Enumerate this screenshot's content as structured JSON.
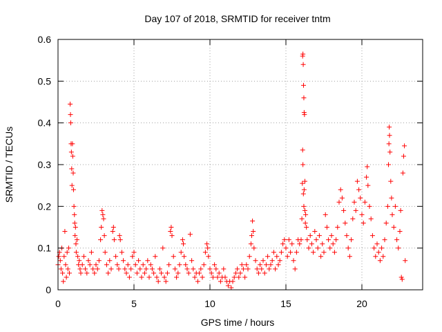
{
  "chart_data": {
    "type": "scatter",
    "title": "Day 107 of 2018, SRMTID for receiver tntm",
    "xlabel": "GPS time / hours",
    "ylabel": "SRMTID / TECUs",
    "xlim": [
      0,
      24
    ],
    "ylim": [
      0,
      0.6
    ],
    "xticks": [
      0,
      5,
      10,
      15,
      20
    ],
    "xtick_labels": [
      "0",
      "5",
      "10",
      "15",
      "20"
    ],
    "yticks": [
      0,
      0.1,
      0.2,
      0.3,
      0.4,
      0.5,
      0.6
    ],
    "ytick_labels": [
      "0",
      "0.1",
      "0.2",
      "0.3",
      "0.4",
      "0.5",
      "0.6"
    ],
    "grid": true,
    "marker": "+",
    "color": "#ff0000",
    "series": [
      {
        "name": "SRMTID",
        "points": [
          [
            0.0,
            0.06
          ],
          [
            0.05,
            0.08
          ],
          [
            0.1,
            0.09
          ],
          [
            0.15,
            0.07
          ],
          [
            0.2,
            0.05
          ],
          [
            0.25,
            0.1
          ],
          [
            0.3,
            0.04
          ],
          [
            0.35,
            0.02
          ],
          [
            0.4,
            0.08
          ],
          [
            0.45,
            0.14
          ],
          [
            0.5,
            0.06
          ],
          [
            0.55,
            0.03
          ],
          [
            0.6,
            0.09
          ],
          [
            0.65,
            0.05
          ],
          [
            0.7,
            0.1
          ],
          [
            0.75,
            0.04
          ],
          [
            0.8,
            0.445
          ],
          [
            0.82,
            0.42
          ],
          [
            0.84,
            0.4
          ],
          [
            0.86,
            0.35
          ],
          [
            0.88,
            0.33
          ],
          [
            0.9,
            0.29
          ],
          [
            0.92,
            0.25
          ],
          [
            0.95,
            0.35
          ],
          [
            0.97,
            0.32
          ],
          [
            1.0,
            0.28
          ],
          [
            1.02,
            0.24
          ],
          [
            1.05,
            0.2
          ],
          [
            1.08,
            0.18
          ],
          [
            1.1,
            0.16
          ],
          [
            1.12,
            0.13
          ],
          [
            1.15,
            0.15
          ],
          [
            1.18,
            0.11
          ],
          [
            1.2,
            0.09
          ],
          [
            1.25,
            0.12
          ],
          [
            1.3,
            0.08
          ],
          [
            1.35,
            0.06
          ],
          [
            1.4,
            0.07
          ],
          [
            1.45,
            0.05
          ],
          [
            1.5,
            0.04
          ],
          [
            1.6,
            0.06
          ],
          [
            1.7,
            0.08
          ],
          [
            1.8,
            0.05
          ],
          [
            1.9,
            0.04
          ],
          [
            2.0,
            0.07
          ],
          [
            2.1,
            0.06
          ],
          [
            2.2,
            0.09
          ],
          [
            2.3,
            0.05
          ],
          [
            2.4,
            0.04
          ],
          [
            2.5,
            0.06
          ],
          [
            2.6,
            0.05
          ],
          [
            2.7,
            0.07
          ],
          [
            2.8,
            0.12
          ],
          [
            2.85,
            0.15
          ],
          [
            2.9,
            0.19
          ],
          [
            2.95,
            0.18
          ],
          [
            3.0,
            0.17
          ],
          [
            3.05,
            0.13
          ],
          [
            3.1,
            0.09
          ],
          [
            3.2,
            0.06
          ],
          [
            3.3,
            0.04
          ],
          [
            3.4,
            0.07
          ],
          [
            3.5,
            0.05
          ],
          [
            3.6,
            0.14
          ],
          [
            3.65,
            0.15
          ],
          [
            3.7,
            0.12
          ],
          [
            3.8,
            0.08
          ],
          [
            3.9,
            0.06
          ],
          [
            4.0,
            0.05
          ],
          [
            4.05,
            0.13
          ],
          [
            4.1,
            0.12
          ],
          [
            4.2,
            0.09
          ],
          [
            4.3,
            0.07
          ],
          [
            4.4,
            0.05
          ],
          [
            4.5,
            0.04
          ],
          [
            4.6,
            0.06
          ],
          [
            4.7,
            0.03
          ],
          [
            4.8,
            0.05
          ],
          [
            4.9,
            0.08
          ],
          [
            5.0,
            0.09
          ],
          [
            5.1,
            0.06
          ],
          [
            5.2,
            0.04
          ],
          [
            5.3,
            0.07
          ],
          [
            5.4,
            0.05
          ],
          [
            5.5,
            0.03
          ],
          [
            5.6,
            0.06
          ],
          [
            5.7,
            0.04
          ],
          [
            5.8,
            0.05
          ],
          [
            5.9,
            0.07
          ],
          [
            6.0,
            0.03
          ],
          [
            6.1,
            0.06
          ],
          [
            6.2,
            0.05
          ],
          [
            6.3,
            0.04
          ],
          [
            6.4,
            0.08
          ],
          [
            6.5,
            0.03
          ],
          [
            6.6,
            0.02
          ],
          [
            6.7,
            0.05
          ],
          [
            6.8,
            0.04
          ],
          [
            6.9,
            0.1
          ],
          [
            7.0,
            0.03
          ],
          [
            7.1,
            0.02
          ],
          [
            7.2,
            0.04
          ],
          [
            7.3,
            0.06
          ],
          [
            7.4,
            0.14
          ],
          [
            7.45,
            0.15
          ],
          [
            7.5,
            0.13
          ],
          [
            7.6,
            0.08
          ],
          [
            7.7,
            0.05
          ],
          [
            7.8,
            0.03
          ],
          [
            7.9,
            0.04
          ],
          [
            8.0,
            0.06
          ],
          [
            8.1,
            0.09
          ],
          [
            8.2,
            0.12
          ],
          [
            8.25,
            0.11
          ],
          [
            8.3,
            0.08
          ],
          [
            8.4,
            0.06
          ],
          [
            8.5,
            0.05
          ],
          [
            8.6,
            0.04
          ],
          [
            8.7,
            0.133
          ],
          [
            8.8,
            0.07
          ],
          [
            8.9,
            0.05
          ],
          [
            9.0,
            0.03
          ],
          [
            9.1,
            0.04
          ],
          [
            9.2,
            0.02
          ],
          [
            9.3,
            0.04
          ],
          [
            9.4,
            0.05
          ],
          [
            9.5,
            0.03
          ],
          [
            9.6,
            0.06
          ],
          [
            9.7,
            0.09
          ],
          [
            9.8,
            0.11
          ],
          [
            9.85,
            0.1
          ],
          [
            9.9,
            0.08
          ],
          [
            10.0,
            0.05
          ],
          [
            10.1,
            0.04
          ],
          [
            10.2,
            0.03
          ],
          [
            10.3,
            0.06
          ],
          [
            10.4,
            0.05
          ],
          [
            10.5,
            0.03
          ],
          [
            10.6,
            0.04
          ],
          [
            10.7,
            0.02
          ],
          [
            10.8,
            0.03
          ],
          [
            10.9,
            0.05
          ],
          [
            11.0,
            0.03
          ],
          [
            11.1,
            0.02
          ],
          [
            11.2,
            0.01
          ],
          [
            11.3,
            0.02
          ],
          [
            11.4,
            0.005
          ],
          [
            11.5,
            0.02
          ],
          [
            11.6,
            0.03
          ],
          [
            11.7,
            0.04
          ],
          [
            11.8,
            0.05
          ],
          [
            11.9,
            0.03
          ],
          [
            12.0,
            0.04
          ],
          [
            12.1,
            0.06
          ],
          [
            12.2,
            0.05
          ],
          [
            12.3,
            0.03
          ],
          [
            12.4,
            0.06
          ],
          [
            12.5,
            0.05
          ],
          [
            12.6,
            0.08
          ],
          [
            12.7,
            0.11
          ],
          [
            12.75,
            0.13
          ],
          [
            12.8,
            0.165
          ],
          [
            12.85,
            0.14
          ],
          [
            12.9,
            0.1
          ],
          [
            13.0,
            0.07
          ],
          [
            13.1,
            0.05
          ],
          [
            13.2,
            0.04
          ],
          [
            13.3,
            0.06
          ],
          [
            13.4,
            0.05
          ],
          [
            13.5,
            0.07
          ],
          [
            13.6,
            0.04
          ],
          [
            13.7,
            0.06
          ],
          [
            13.8,
            0.08
          ],
          [
            13.9,
            0.05
          ],
          [
            14.0,
            0.06
          ],
          [
            14.1,
            0.07
          ],
          [
            14.2,
            0.09
          ],
          [
            14.3,
            0.05
          ],
          [
            14.4,
            0.08
          ],
          [
            14.5,
            0.06
          ],
          [
            14.6,
            0.07
          ],
          [
            14.7,
            0.09
          ],
          [
            14.8,
            0.11
          ],
          [
            14.9,
            0.12
          ],
          [
            15.0,
            0.1
          ],
          [
            15.1,
            0.08
          ],
          [
            15.2,
            0.12
          ],
          [
            15.3,
            0.09
          ],
          [
            15.4,
            0.11
          ],
          [
            15.5,
            0.07
          ],
          [
            15.6,
            0.05
          ],
          [
            15.7,
            0.09
          ],
          [
            15.8,
            0.12
          ],
          [
            15.9,
            0.11
          ],
          [
            16.0,
            0.12
          ],
          [
            16.05,
            0.17
          ],
          [
            16.08,
            0.255
          ],
          [
            16.1,
            0.335
          ],
          [
            16.12,
            0.3
          ],
          [
            16.15,
            0.23
          ],
          [
            16.18,
            0.2
          ],
          [
            16.2,
            0.24
          ],
          [
            16.25,
            0.19
          ],
          [
            16.28,
            0.16
          ],
          [
            16.3,
            0.18
          ],
          [
            16.35,
            0.15
          ],
          [
            16.4,
            0.12
          ],
          [
            16.5,
            0.1
          ],
          [
            16.6,
            0.13
          ],
          [
            16.7,
            0.11
          ],
          [
            16.1,
            0.56
          ],
          [
            16.12,
            0.565
          ],
          [
            16.14,
            0.54
          ],
          [
            16.16,
            0.49
          ],
          [
            16.18,
            0.46
          ],
          [
            16.2,
            0.425
          ],
          [
            16.22,
            0.42
          ],
          [
            16.25,
            0.26
          ],
          [
            16.8,
            0.09
          ],
          [
            16.9,
            0.14
          ],
          [
            17.0,
            0.12
          ],
          [
            17.1,
            0.1
          ],
          [
            17.2,
            0.13
          ],
          [
            17.3,
            0.08
          ],
          [
            17.4,
            0.11
          ],
          [
            17.5,
            0.09
          ],
          [
            17.6,
            0.18
          ],
          [
            17.7,
            0.15
          ],
          [
            17.8,
            0.12
          ],
          [
            17.9,
            0.1
          ],
          [
            18.0,
            0.13
          ],
          [
            18.1,
            0.11
          ],
          [
            18.2,
            0.09
          ],
          [
            18.3,
            0.12
          ],
          [
            18.4,
            0.15
          ],
          [
            18.5,
            0.21
          ],
          [
            18.6,
            0.24
          ],
          [
            18.7,
            0.22
          ],
          [
            18.8,
            0.19
          ],
          [
            18.9,
            0.16
          ],
          [
            19.0,
            0.13
          ],
          [
            19.1,
            0.1
          ],
          [
            19.2,
            0.08
          ],
          [
            19.3,
            0.12
          ],
          [
            19.4,
            0.17
          ],
          [
            19.5,
            0.21
          ],
          [
            19.6,
            0.19
          ],
          [
            19.7,
            0.26
          ],
          [
            19.8,
            0.24
          ],
          [
            19.9,
            0.22
          ],
          [
            20.0,
            0.18
          ],
          [
            20.1,
            0.16
          ],
          [
            20.2,
            0.21
          ],
          [
            20.3,
            0.27
          ],
          [
            20.35,
            0.295
          ],
          [
            20.4,
            0.25
          ],
          [
            20.5,
            0.2
          ],
          [
            20.6,
            0.17
          ],
          [
            20.7,
            0.13
          ],
          [
            20.8,
            0.1
          ],
          [
            20.9,
            0.08
          ],
          [
            21.0,
            0.11
          ],
          [
            21.1,
            0.09
          ],
          [
            21.2,
            0.07
          ],
          [
            21.3,
            0.1
          ],
          [
            21.4,
            0.08
          ],
          [
            21.5,
            0.12
          ],
          [
            21.6,
            0.16
          ],
          [
            21.7,
            0.2
          ],
          [
            21.75,
            0.3
          ],
          [
            21.78,
            0.35
          ],
          [
            21.8,
            0.39
          ],
          [
            21.82,
            0.37
          ],
          [
            21.85,
            0.33
          ],
          [
            21.9,
            0.26
          ],
          [
            21.95,
            0.22
          ],
          [
            22.0,
            0.18
          ],
          [
            22.1,
            0.15
          ],
          [
            22.2,
            0.2
          ],
          [
            22.3,
            0.12
          ],
          [
            22.4,
            0.1
          ],
          [
            22.5,
            0.14
          ],
          [
            22.55,
            0.19
          ],
          [
            22.6,
            0.03
          ],
          [
            22.65,
            0.025
          ],
          [
            22.7,
            0.28
          ],
          [
            22.75,
            0.32
          ],
          [
            22.8,
            0.345
          ],
          [
            22.85,
            0.07
          ]
        ]
      }
    ]
  }
}
